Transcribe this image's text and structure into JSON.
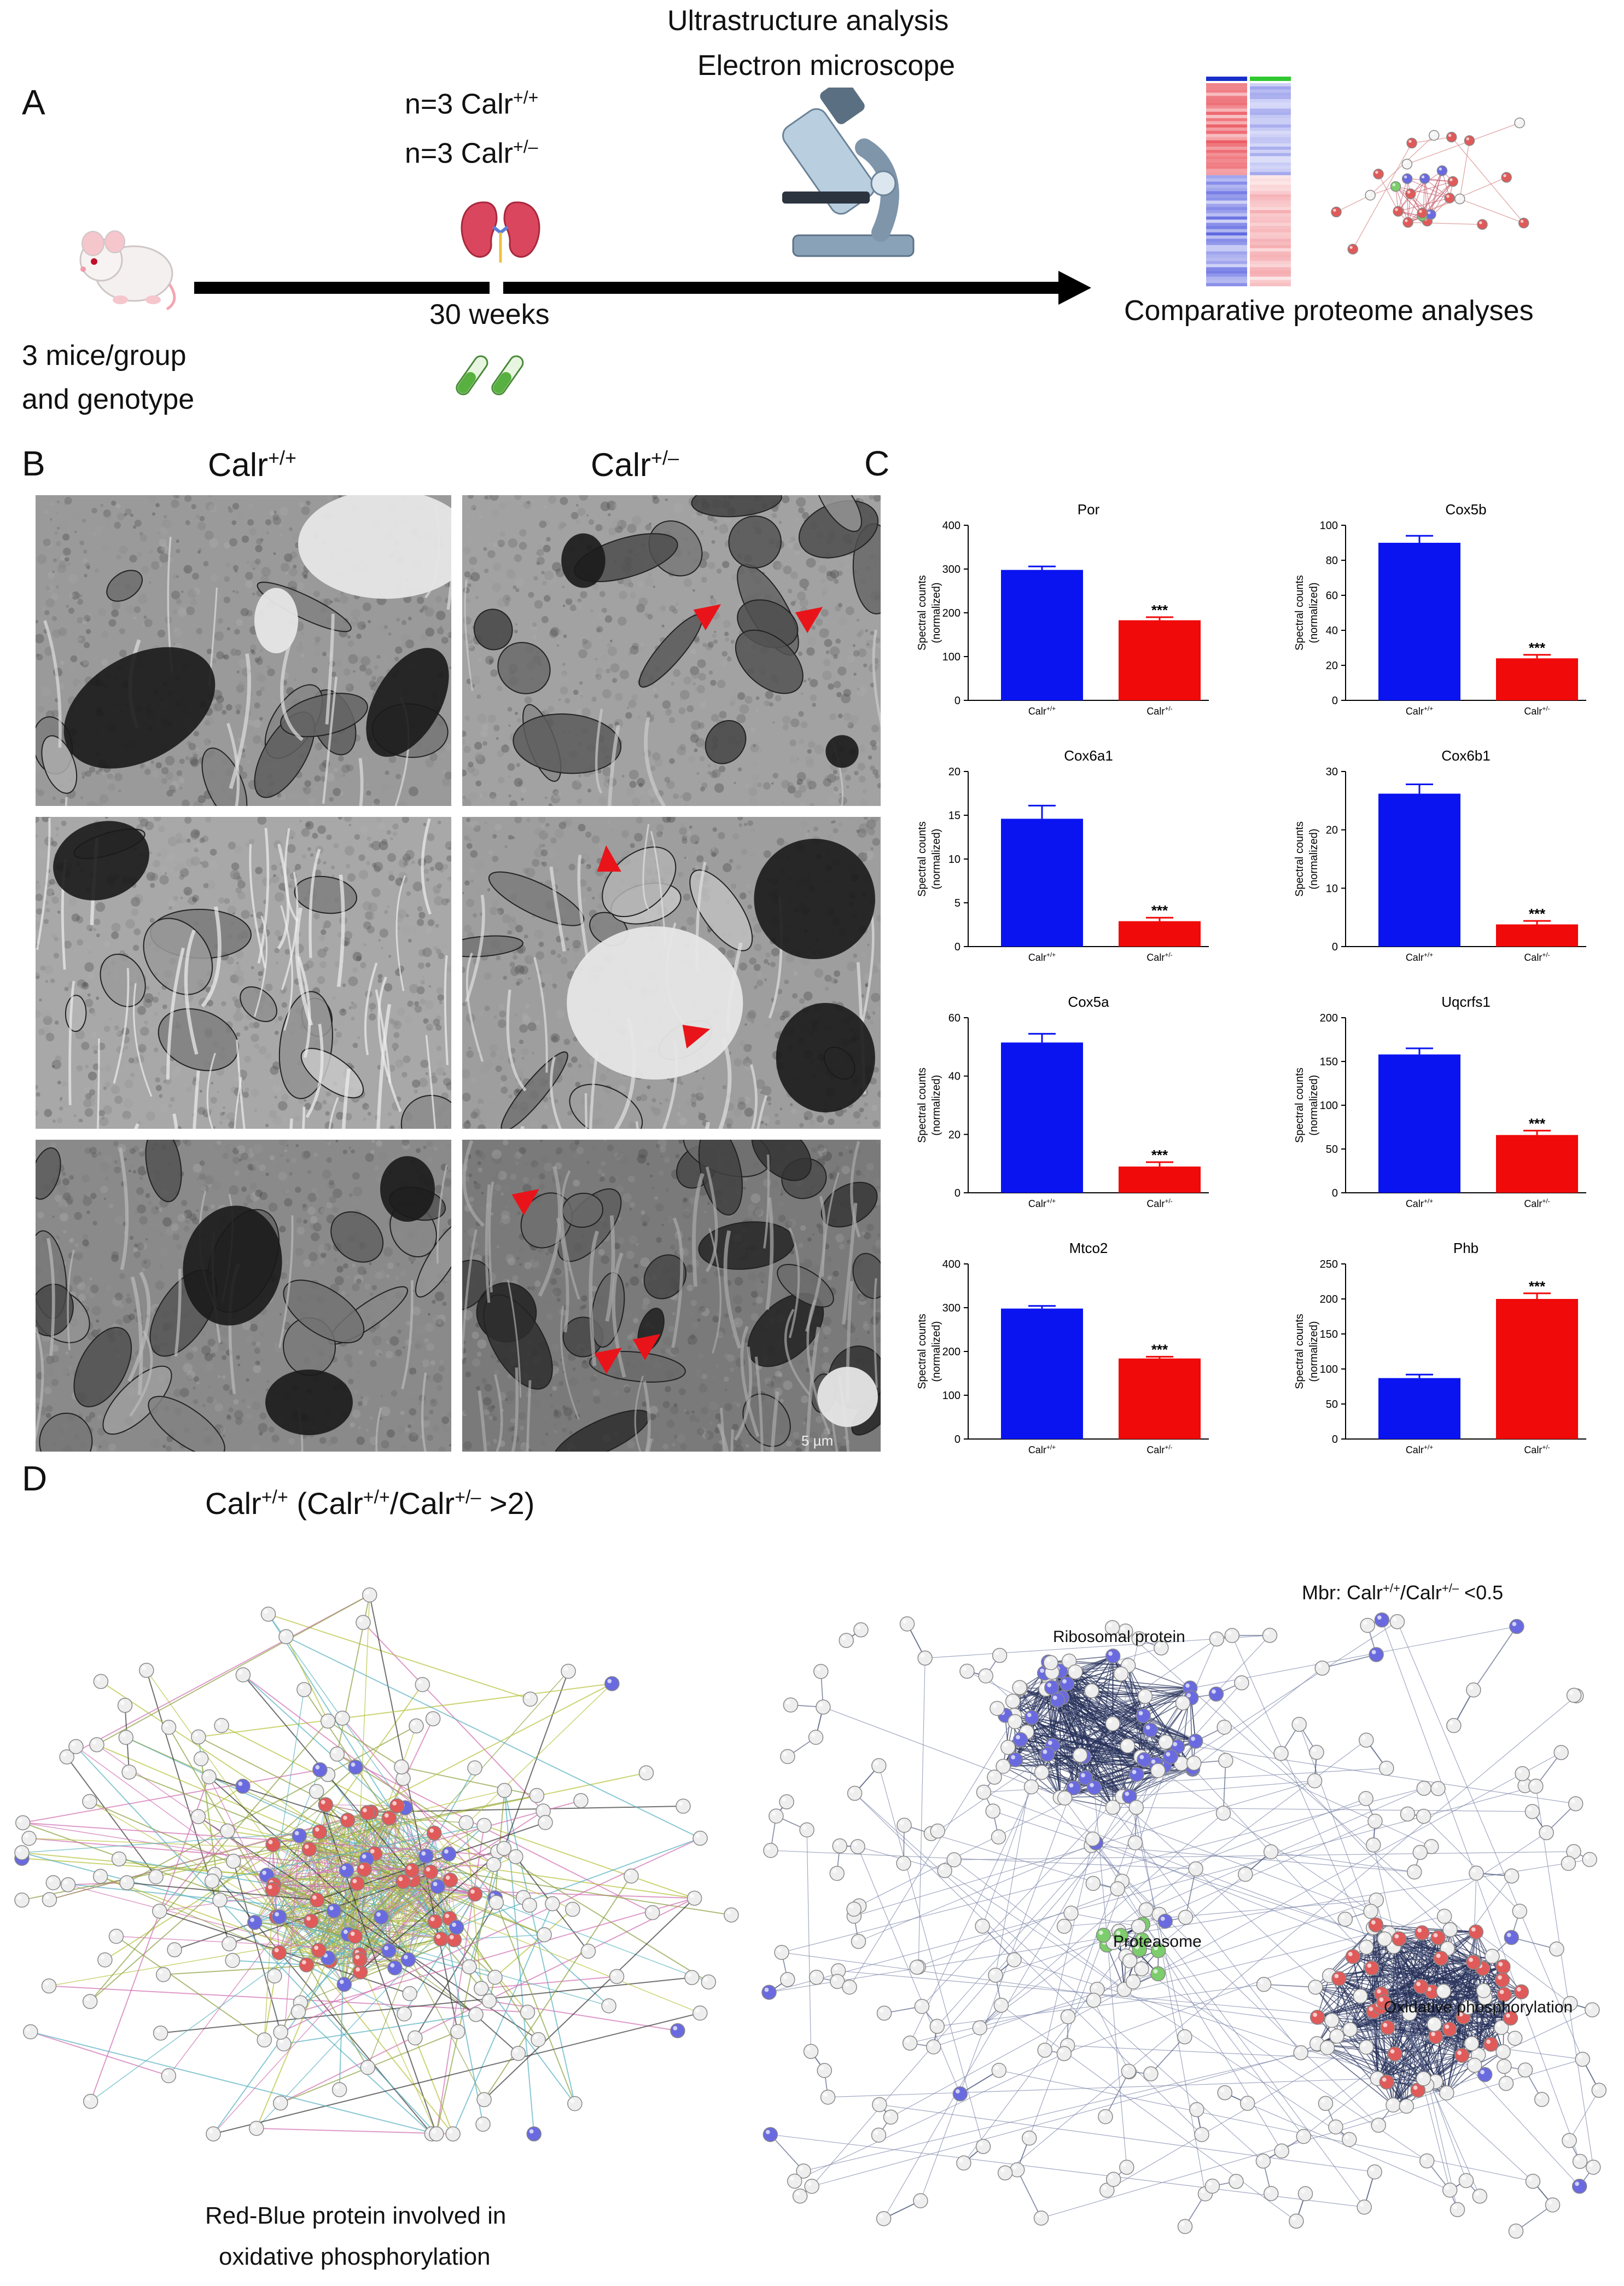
{
  "panels": {
    "a": "A",
    "b": "B",
    "c": "C",
    "d": "D"
  },
  "timeline": {
    "top_title": "Ultrastructure analysis",
    "top_subtitle": "Electron microscope",
    "n_wt_prefix": "n=3 Calr",
    "n_wt_sup": "+/+",
    "n_het_prefix": "n=3 Calr",
    "n_het_sup": "+/–",
    "weeks": "30 weeks",
    "mice_line1": "3 mice/group",
    "mice_line2": "and genotype",
    "proteome": "Comparative proteome analyses"
  },
  "em": {
    "col1_prefix": "Calr",
    "col1_sup": "+/+",
    "col2_prefix": "Calr",
    "col2_sup": "+/–",
    "scale_label": "5 µm"
  },
  "colors": {
    "wt": "#0a14f0",
    "het": "#f00a0a",
    "arrow": "#e8141a",
    "net_red": "#e05a5a",
    "net_blue": "#6a6ae0",
    "net_green": "#7ccd6c"
  },
  "chart_data": [
    {
      "type": "bar",
      "title": "Por",
      "ylabel": "Spectral counts",
      "ylabel2": "(normalized)",
      "categories_prefix": [
        "Calr",
        "Calr"
      ],
      "categories_sup": [
        "+/+",
        "+/-"
      ],
      "values": [
        298,
        183
      ],
      "errors": [
        8,
        7
      ],
      "ylim": [
        0,
        400
      ],
      "yticks": [
        "0",
        "100",
        "200",
        "300",
        "400"
      ],
      "sig": "***"
    },
    {
      "type": "bar",
      "title": "Cox5b",
      "ylabel": "Spectral counts",
      "ylabel2": "(normalized)",
      "categories_prefix": [
        "Calr",
        "Calr"
      ],
      "categories_sup": [
        "+/+",
        "+/-"
      ],
      "values": [
        90,
        24
      ],
      "errors": [
        4,
        2
      ],
      "ylim": [
        0,
        100
      ],
      "yticks": [
        "0",
        "20",
        "40",
        "60",
        "80",
        "100"
      ],
      "sig": "***"
    },
    {
      "type": "bar",
      "title": "Cox6a1",
      "ylabel": "Spectral counts",
      "ylabel2": "(normalized)",
      "categories_prefix": [
        "Calr",
        "Calr"
      ],
      "categories_sup": [
        "+/+",
        "+/-"
      ],
      "values": [
        14.6,
        2.9
      ],
      "errors": [
        1.5,
        0.4
      ],
      "ylim": [
        0,
        20
      ],
      "yticks": [
        "0",
        "5",
        "10",
        "15",
        "20"
      ],
      "sig": "***"
    },
    {
      "type": "bar",
      "title": "Cox6b1",
      "ylabel": "Spectral counts",
      "ylabel2": "(normalized)",
      "categories_prefix": [
        "Calr",
        "Calr"
      ],
      "categories_sup": [
        "+/+",
        "+/-"
      ],
      "values": [
        26.2,
        3.8
      ],
      "errors": [
        1.6,
        0.6
      ],
      "ylim": [
        0,
        30
      ],
      "yticks": [
        "0",
        "10",
        "20",
        "30"
      ],
      "sig": "***"
    },
    {
      "type": "bar",
      "title": "Cox5a",
      "ylabel": "Spectral counts",
      "ylabel2": "(normalized)",
      "categories_prefix": [
        "Calr",
        "Calr"
      ],
      "categories_sup": [
        "+/+",
        "+/-"
      ],
      "values": [
        51.5,
        9
      ],
      "errors": [
        3,
        1.5
      ],
      "ylim": [
        0,
        60
      ],
      "yticks": [
        "0",
        "20",
        "40",
        "60"
      ],
      "sig": "***"
    },
    {
      "type": "bar",
      "title": "Uqcrfs1",
      "ylabel": "Spectral counts",
      "ylabel2": "(normalized)",
      "categories_prefix": [
        "Calr",
        "Calr"
      ],
      "categories_sup": [
        "+/+",
        "+/-"
      ],
      "values": [
        158,
        66
      ],
      "errors": [
        7,
        5
      ],
      "ylim": [
        0,
        200
      ],
      "yticks": [
        "0",
        "50",
        "100",
        "150",
        "200"
      ],
      "sig": "***"
    },
    {
      "type": "bar",
      "title": "Mtco2",
      "ylabel": "Spectral counts",
      "ylabel2": "(normalized)",
      "categories_prefix": [
        "Calr",
        "Calr"
      ],
      "categories_sup": [
        "+/+",
        "+/-"
      ],
      "values": [
        298,
        184
      ],
      "errors": [
        6,
        4
      ],
      "ylim": [
        0,
        400
      ],
      "yticks": [
        "0",
        "100",
        "200",
        "300",
        "400"
      ],
      "sig": "***"
    },
    {
      "type": "bar",
      "title": "Phb",
      "ylabel": "Spectral counts",
      "ylabel2": "(normalized)",
      "categories_prefix": [
        "Calr",
        "Calr"
      ],
      "categories_sup": [
        "+/+",
        "+/-"
      ],
      "values": [
        87,
        200
      ],
      "errors": [
        5,
        8
      ],
      "ylim": [
        0,
        250
      ],
      "yticks": [
        "0",
        "50",
        "100",
        "150",
        "200",
        "250"
      ],
      "sig": "***"
    }
  ],
  "network": {
    "left_title_a": "Calr",
    "left_title_sup1": "+/+",
    "left_title_b": " (Calr",
    "left_title_sup2": "+/+",
    "left_title_c": "/Calr",
    "left_title_sup3": "+/–",
    "left_title_d": " >2)",
    "right_title_a": "Mbr: Calr",
    "right_title_sup1": "+/+",
    "right_title_b": "/Calr",
    "right_title_sup2": "+/–",
    "right_title_c": " <0.5",
    "ribosomal": "Ribosomal protein",
    "proteasome": "Proteasome",
    "oxphos": "Oxidative phosphorylation",
    "caption_line1": "Red-Blue protein involved in",
    "caption_line2": "oxidative phosphorylation"
  }
}
